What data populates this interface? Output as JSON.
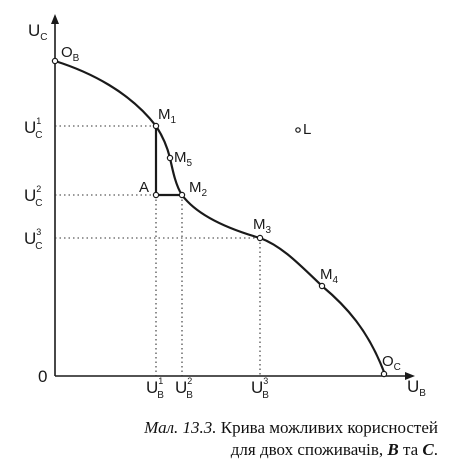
{
  "figure": {
    "y_axis": {
      "main": "U",
      "sub": "C"
    },
    "x_axis": {
      "main": "U",
      "sub": "B"
    },
    "origin": "0",
    "points": {
      "OB": {
        "main": "O",
        "sub": "B"
      },
      "OC": {
        "main": "O",
        "sub": "C"
      },
      "M1": {
        "main": "M",
        "sub": "1"
      },
      "M2": {
        "main": "M",
        "sub": "2"
      },
      "M3": {
        "main": "M",
        "sub": "3"
      },
      "M4": {
        "main": "M",
        "sub": "4"
      },
      "M5": {
        "main": "M",
        "sub": "5"
      },
      "A": "A",
      "L": "L"
    },
    "y_ticks": [
      {
        "main": "U",
        "sub": "C",
        "sup": "1"
      },
      {
        "main": "U",
        "sub": "C",
        "sup": "2"
      },
      {
        "main": "U",
        "sub": "C",
        "sup": "3"
      }
    ],
    "x_ticks": [
      {
        "main": "U",
        "sub": "B",
        "sup": "1"
      },
      {
        "main": "U",
        "sub": "B",
        "sup": "2"
      },
      {
        "main": "U",
        "sub": "B",
        "sup": "3"
      }
    ]
  },
  "caption": {
    "prefix": "Мал. 13.3.",
    "line1": "Крива можливих корисностей",
    "line2_start": "для двох споживачів, ",
    "b": "B",
    "mid": " та ",
    "c": "C",
    "end": "."
  }
}
